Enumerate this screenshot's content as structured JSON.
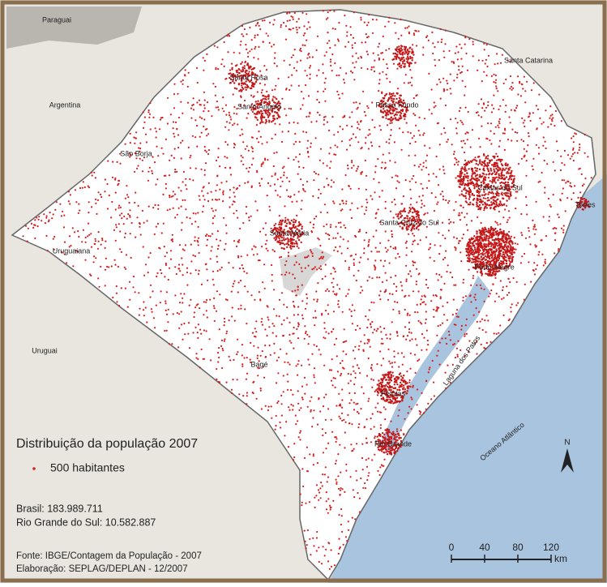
{
  "map": {
    "regions": [
      "Paraguai",
      "Argentina",
      "Santa Catarina",
      "Uruguai",
      "Oceano Atlântico",
      "Laguna dos Patos"
    ],
    "cities": [
      "Santa Rosa",
      "Santo Ângelo",
      "Passo Fundo",
      "São Borja",
      "Caxias do Sul",
      "Torres",
      "Santa Cruz do Sul",
      "Santa Maria",
      "Uruguaiana",
      "Porto Alegre",
      "Bagé",
      "Pelotas",
      "Rio Grande"
    ],
    "legend": {
      "title": "Distribuição da população 2007",
      "item": "500 habitantes"
    },
    "population": [
      "Brasil: 183.989.711",
      "Rio Grande do Sul: 10.582.887"
    ],
    "credits": [
      "Fonte: IBGE/Contagem da População - 2007",
      "Elaboração: SEPLAG/DEPLAN - 12/2007"
    ],
    "north": "N",
    "scale_bar": {
      "ticks": [
        0,
        40,
        80,
        120
      ],
      "unit": "km"
    }
  }
}
